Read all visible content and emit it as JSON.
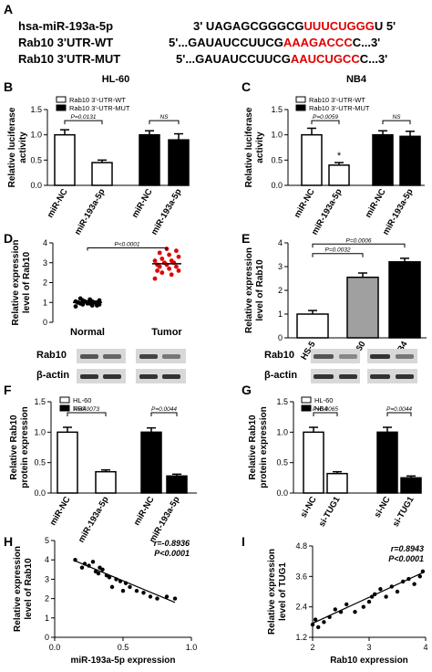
{
  "panel_letters": [
    "A",
    "B",
    "C",
    "D",
    "E",
    "F",
    "G",
    "H",
    "I"
  ],
  "panel_a": {
    "rows": [
      {
        "label": "hsa-miR-193a-5p",
        "prefix": "3'  UAGAGCGGGCG",
        "highlight": "UUUCUGGG",
        "suffix": "U  5'"
      },
      {
        "label": "Rab10 3'UTR-WT",
        "prefix": "5'...GAUAUCCUUCG",
        "highlight": "AAAGACCC",
        "suffix": "C...3'"
      },
      {
        "label": "Rab10 3'UTR-MUT",
        "prefix": "5'...GAUAUCCUUCG",
        "highlight": "AAUCUGCC",
        "suffix": "C...3'"
      }
    ]
  },
  "chart_data": [
    {
      "id": "B",
      "type": "bar",
      "title": "HL-60",
      "ylabel": "Relative  luciferase\nactivity",
      "ylim": [
        0,
        1.5
      ],
      "yticks": [
        "0.0",
        "0.5",
        "1.0",
        "1.5"
      ],
      "categories": [
        "miR-NC",
        "miR-193a-5p",
        "miR-NC",
        "miR-193a-5p"
      ],
      "series": [
        {
          "name": "Rab10 3'-UTR-WT",
          "values": [
            1.0,
            0.45,
            null,
            null
          ]
        },
        {
          "name": "Rab10 3'-UTR-MUT",
          "values": [
            null,
            null,
            1.0,
            0.9
          ]
        }
      ],
      "errors": [
        0.1,
        0.05,
        0.08,
        0.12
      ],
      "annotations": [
        "P=0.0131",
        "NS"
      ]
    },
    {
      "id": "C",
      "type": "bar",
      "title": "NB4",
      "ylabel": "Relative  luciferase\nactivity",
      "ylim": [
        0,
        1.5
      ],
      "yticks": [
        "0.0",
        "0.5",
        "1.0",
        "1.5"
      ],
      "categories": [
        "miR-NC",
        "miR-193a-5p",
        "miR-NC",
        "miR-193a-5p"
      ],
      "series": [
        {
          "name": "Rab10 3'-UTR-WT",
          "values": [
            1.0,
            0.4,
            null,
            null
          ]
        },
        {
          "name": "Rab10 3'-UTR-MUT",
          "values": [
            null,
            null,
            1.0,
            0.97
          ]
        }
      ],
      "errors": [
        0.13,
        0.05,
        0.08,
        0.1
      ],
      "annotations": [
        "P=0.0059",
        "*",
        "NS"
      ]
    },
    {
      "id": "D",
      "type": "scatter",
      "ylabel": "Relative expression\nlevel of Rab10",
      "ylim": [
        0,
        4
      ],
      "yticks": [
        "0",
        "1",
        "2",
        "3",
        "4"
      ],
      "categories": [
        "Normal",
        "Tumor"
      ],
      "series": [
        {
          "name": "Normal",
          "values": [
            0.8,
            0.85,
            0.9,
            0.9,
            0.95,
            0.95,
            1.0,
            1.0,
            1.0,
            1.0,
            1.05,
            1.05,
            1.05,
            1.1,
            1.1,
            1.15,
            1.2,
            0.85,
            0.95,
            1.0
          ]
        },
        {
          "name": "Tumor",
          "values": [
            2.2,
            2.4,
            2.5,
            2.6,
            2.7,
            2.8,
            2.8,
            2.9,
            2.9,
            3.0,
            3.0,
            3.1,
            3.1,
            3.2,
            3.3,
            3.4,
            3.5,
            3.6,
            3.7,
            2.6
          ]
        }
      ],
      "means": [
        1.0,
        2.95
      ],
      "annotations": [
        "P<0.0001"
      ]
    },
    {
      "id": "E",
      "type": "bar",
      "ylabel": "Relative expression\nlevel of Rab10",
      "ylim": [
        0,
        4
      ],
      "yticks": [
        "0",
        "1",
        "2",
        "3",
        "4"
      ],
      "categories": [
        "HS-5",
        "HL-60",
        "NB4"
      ],
      "values": [
        1.0,
        2.55,
        3.2
      ],
      "errors": [
        0.15,
        0.18,
        0.15
      ],
      "annotations": [
        "P=0.0032",
        "P=0.0006"
      ]
    },
    {
      "id": "F",
      "type": "bar",
      "ylabel": "Relative Rab10\nprotein expression",
      "ylim": [
        0,
        1.5
      ],
      "yticks": [
        "0.0",
        "0.5",
        "1.0",
        "1.5"
      ],
      "categories": [
        "miR-NC",
        "miR-193a-5p",
        "miR-NC",
        "miR-193a-5p"
      ],
      "series": [
        {
          "name": "HL-60",
          "values": [
            1.0,
            0.35,
            null,
            null
          ]
        },
        {
          "name": "NB4",
          "values": [
            null,
            null,
            1.0,
            0.28
          ]
        }
      ],
      "errors": [
        0.08,
        0.03,
        0.07,
        0.03
      ],
      "annotations": [
        "P=0.0073",
        "P=0.0044"
      ],
      "blot_labels": [
        "Rab10",
        "β-actin"
      ]
    },
    {
      "id": "G",
      "type": "bar",
      "ylabel": "Relative Rab10\nprotein expression",
      "ylim": [
        0,
        1.5
      ],
      "yticks": [
        "0.0",
        "0.5",
        "1.0",
        "1.5"
      ],
      "categories": [
        "si-NC",
        "si-TUG1",
        "si-NC",
        "si-TUG1"
      ],
      "series": [
        {
          "name": "HL-60",
          "values": [
            1.0,
            0.32,
            null,
            null
          ]
        },
        {
          "name": "NB4",
          "values": [
            null,
            null,
            1.0,
            0.25
          ]
        }
      ],
      "errors": [
        0.08,
        0.03,
        0.08,
        0.03
      ],
      "annotations": [
        "P=0.0065",
        "P=0.0044"
      ],
      "blot_labels": [
        "Rab10",
        "β-actin"
      ]
    },
    {
      "id": "H",
      "type": "scatter",
      "xlabel": "miR-193a-5p expression",
      "ylabel": "Relative expression\nlevel of Rab10",
      "xlim": [
        0,
        1.0
      ],
      "xticks": [
        "0.0",
        "0.5",
        "1.0"
      ],
      "ylim": [
        0,
        5
      ],
      "yticks": [
        "0",
        "1",
        "2",
        "3",
        "4",
        "5"
      ],
      "x": [
        0.15,
        0.2,
        0.22,
        0.25,
        0.28,
        0.3,
        0.32,
        0.33,
        0.35,
        0.38,
        0.4,
        0.42,
        0.45,
        0.48,
        0.5,
        0.52,
        0.55,
        0.6,
        0.65,
        0.7,
        0.75,
        0.82,
        0.88
      ],
      "y": [
        4.0,
        3.6,
        3.8,
        3.7,
        3.9,
        3.4,
        3.3,
        3.6,
        3.5,
        3.2,
        3.1,
        2.6,
        3.0,
        2.9,
        2.4,
        2.8,
        2.6,
        2.4,
        2.3,
        2.1,
        2.0,
        2.1,
        2.0
      ],
      "fit": {
        "x": [
          0.15,
          0.88
        ],
        "y": [
          3.95,
          1.8
        ]
      },
      "annotations": [
        "r=-0.8936",
        "P<0.0001"
      ]
    },
    {
      "id": "I",
      "type": "scatter",
      "xlabel": "Rab10 expression",
      "ylabel": "Relative expression\nlevel of TUG1",
      "xlim": [
        2,
        4
      ],
      "xticks": [
        "2",
        "3",
        "4"
      ],
      "ylim": [
        1.2,
        4.8
      ],
      "yticks": [
        "1.2",
        "2.4",
        "3.6",
        "4.8"
      ],
      "x": [
        2.0,
        2.05,
        2.1,
        2.2,
        2.3,
        2.4,
        2.5,
        2.6,
        2.75,
        2.9,
        3.0,
        3.05,
        3.1,
        3.2,
        3.3,
        3.4,
        3.5,
        3.6,
        3.7,
        3.8,
        3.9,
        3.95
      ],
      "y": [
        1.7,
        1.9,
        1.6,
        1.8,
        2.0,
        2.3,
        2.2,
        2.5,
        2.2,
        2.4,
        2.6,
        2.8,
        2.9,
        3.1,
        2.8,
        3.2,
        3.0,
        3.4,
        3.5,
        3.3,
        3.6,
        3.8
      ],
      "fit": {
        "x": [
          2.0,
          3.95
        ],
        "y": [
          1.75,
          3.75
        ]
      },
      "annotations": [
        "r=0.8943",
        "P<0.0001"
      ]
    }
  ],
  "colors": {
    "red": "#e00000",
    "black": "#000000",
    "gray": "#a0a0a0",
    "white": "#ffffff"
  }
}
